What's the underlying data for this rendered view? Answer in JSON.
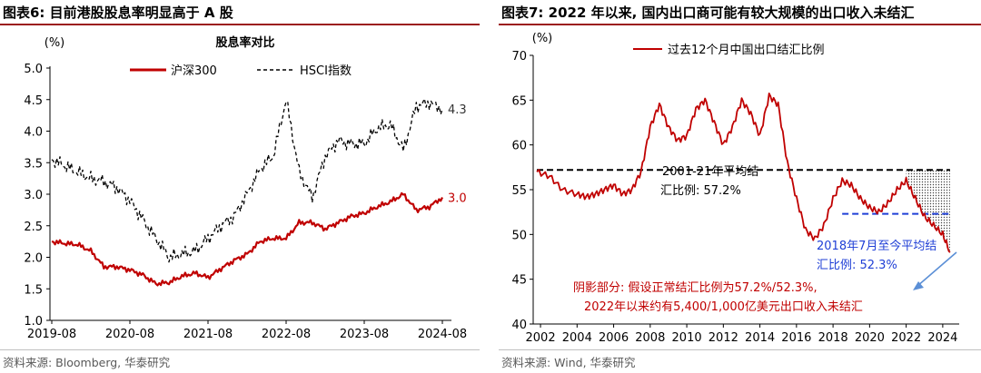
{
  "left": {
    "figure_title": "图表6:  目前港股股息率明显高于 A 股",
    "source": "资料来源: Bloomberg, 华泰研究"
  },
  "right": {
    "figure_title": "图表7:  2022 年以来, 国内出口商可能有较大规模的出口收入未结汇",
    "source": "资料来源: Wind, 华泰研究"
  },
  "colors": {
    "red": "#c00000",
    "black": "#000000",
    "blue": "#1f3fd6",
    "arrow": "#5b8fd6",
    "rule": "#9b1c1c"
  },
  "chart_data": [
    {
      "type": "line",
      "title": "股息率对比",
      "ylabel": "(%)",
      "xlabel": "",
      "ylim": [
        1.0,
        5.0
      ],
      "yticks": [
        "5.0",
        "4.5",
        "4.0",
        "3.5",
        "3.0",
        "2.5",
        "2.0",
        "1.5",
        "1.0"
      ],
      "xticks": [
        "2019-08",
        "2020-08",
        "2021-08",
        "2022-08",
        "2023-08",
        "2024-08"
      ],
      "grid": false,
      "legend_position": "top-center",
      "x": [
        "2019-08",
        "2019-10",
        "2019-12",
        "2020-02",
        "2020-04",
        "2020-06",
        "2020-08",
        "2020-10",
        "2020-12",
        "2021-02",
        "2021-04",
        "2021-06",
        "2021-08",
        "2021-10",
        "2021-12",
        "2022-02",
        "2022-04",
        "2022-06",
        "2022-08",
        "2022-10",
        "2022-12",
        "2023-02",
        "2023-04",
        "2023-06",
        "2023-08",
        "2023-10",
        "2023-12",
        "2024-02",
        "2024-04",
        "2024-06",
        "2024-08"
      ],
      "series": [
        {
          "name": "沪深300",
          "style": "solid",
          "color": "#c00000",
          "values": [
            2.25,
            2.22,
            2.2,
            2.1,
            1.85,
            1.85,
            1.8,
            1.72,
            1.58,
            1.6,
            1.7,
            1.75,
            1.68,
            1.82,
            1.95,
            2.05,
            2.25,
            2.3,
            2.3,
            2.55,
            2.55,
            2.45,
            2.55,
            2.65,
            2.7,
            2.8,
            2.88,
            3.0,
            2.75,
            2.8,
            2.95
          ],
          "end_label": "3.0"
        },
        {
          "name": "HSCI指数",
          "style": "dashed",
          "color": "#000000",
          "values": [
            3.55,
            3.45,
            3.35,
            3.25,
            3.2,
            3.1,
            2.9,
            2.6,
            2.3,
            2.0,
            2.05,
            2.1,
            2.3,
            2.5,
            2.65,
            3.0,
            3.4,
            3.6,
            4.5,
            3.35,
            2.95,
            3.6,
            3.85,
            3.8,
            3.8,
            4.05,
            4.1,
            3.7,
            4.4,
            4.45,
            4.35
          ],
          "end_label": "4.3"
        }
      ]
    },
    {
      "type": "line",
      "title": "",
      "ylabel": "(%)",
      "xlabel": "",
      "ylim": [
        40,
        70
      ],
      "yticks": [
        "70",
        "65",
        "60",
        "55",
        "50",
        "45",
        "40"
      ],
      "xticks": [
        "2002",
        "2004",
        "2006",
        "2008",
        "2010",
        "2012",
        "2014",
        "2016",
        "2018",
        "2020",
        "2022",
        "2024"
      ],
      "grid": false,
      "legend_position": "top-right",
      "x": [
        2001.8,
        2002.5,
        2003.2,
        2004.0,
        2004.5,
        2005.0,
        2005.5,
        2006.0,
        2006.5,
        2007.0,
        2007.5,
        2008.0,
        2008.5,
        2009.0,
        2009.5,
        2010.0,
        2010.5,
        2011.0,
        2011.5,
        2012.0,
        2012.5,
        2013.0,
        2013.5,
        2014.0,
        2014.5,
        2015.0,
        2015.5,
        2016.0,
        2016.5,
        2017.0,
        2017.5,
        2018.0,
        2018.5,
        2019.0,
        2019.5,
        2020.0,
        2020.5,
        2021.0,
        2021.5,
        2022.0,
        2022.5,
        2023.0,
        2023.5,
        2024.0,
        2024.4
      ],
      "series": [
        {
          "name": "过去12个月中国出口结汇比例",
          "style": "solid",
          "color": "#c00000",
          "values": [
            57.0,
            56.5,
            55.0,
            54.5,
            54.2,
            54.5,
            55.0,
            55.5,
            54.5,
            55.0,
            57.0,
            62.0,
            64.5,
            62.0,
            60.5,
            61.0,
            64.0,
            65.0,
            62.5,
            60.0,
            62.0,
            65.0,
            63.5,
            61.0,
            65.5,
            64.5,
            58.0,
            54.0,
            50.5,
            49.5,
            51.0,
            54.0,
            56.0,
            55.5,
            54.0,
            53.0,
            52.5,
            53.5,
            55.0,
            56.0,
            54.0,
            52.0,
            51.0,
            50.0,
            48.0
          ]
        }
      ],
      "reference_lines": [
        {
          "label": "2001-21年平均结汇比例: 57.2%",
          "value": 57.2,
          "from": 2001.8,
          "to": 2024.4,
          "color": "#000000"
        },
        {
          "label": "2018年7月至今平均结汇比例: 52.3%",
          "value": 52.3,
          "from": 2018.5,
          "to": 2024.4,
          "color": "#1f3fd6"
        }
      ],
      "annotation": "阴影部分: 假设正常结汇比例为57.2%/52.3%, 2022年以来约有5,400/1,000亿美元出口收入未结汇"
    }
  ]
}
